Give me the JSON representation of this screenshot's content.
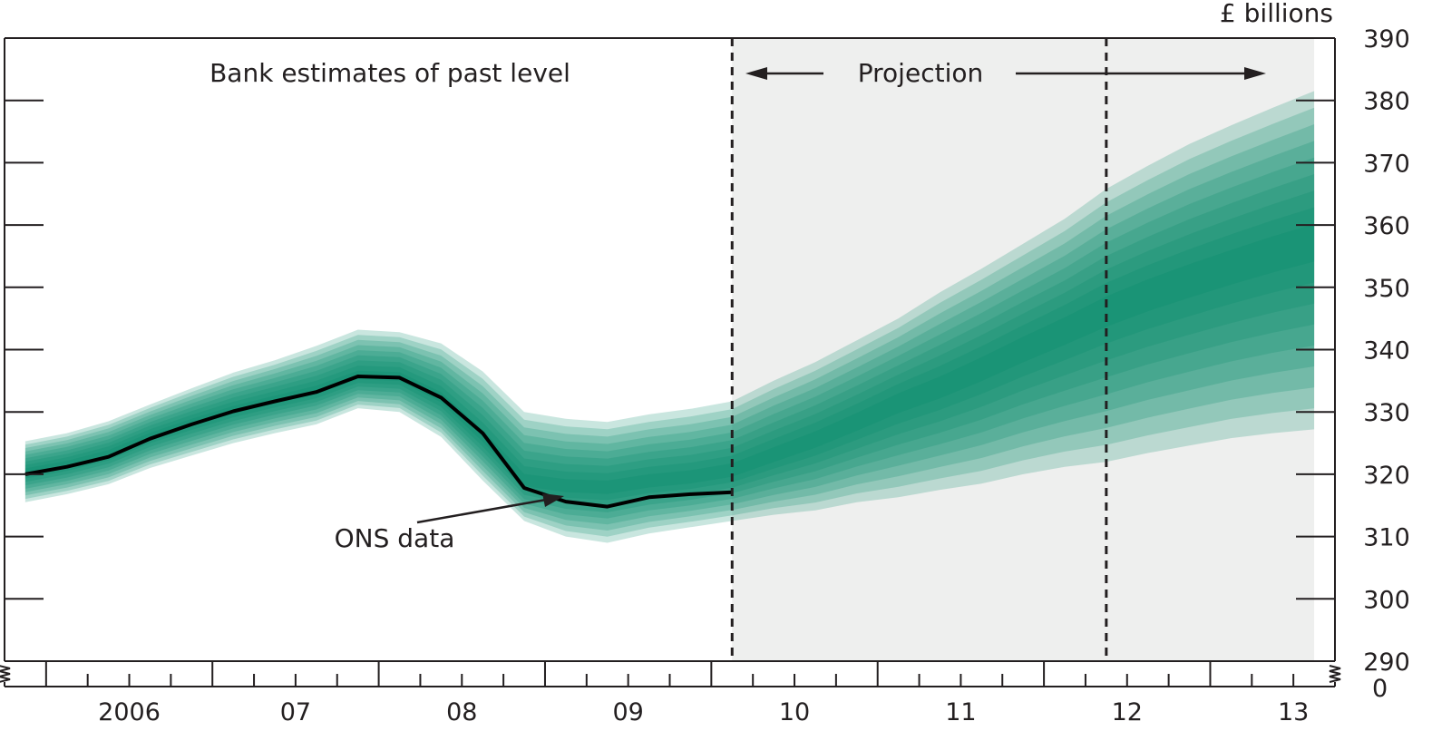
{
  "chart_data": {
    "type": "area",
    "title": "",
    "unit_label": "£ billions",
    "ylim": [
      290,
      390
    ],
    "y_ticks": [
      290,
      300,
      310,
      320,
      330,
      340,
      350,
      360,
      370,
      380,
      390
    ],
    "y_axis_break_label": "0",
    "x_range": [
      2005.75,
      2013.75
    ],
    "x_tick_labels": [
      {
        "label": "2006",
        "x": 2006.5
      },
      {
        "label": "07",
        "x": 2007.5
      },
      {
        "label": "08",
        "x": 2008.5
      },
      {
        "label": "09",
        "x": 2009.5
      },
      {
        "label": "10",
        "x": 2010.5
      },
      {
        "label": "11",
        "x": 2011.5
      },
      {
        "label": "12",
        "x": 2012.5
      },
      {
        "label": "13",
        "x": 2013.5
      }
    ],
    "projection_start": 2010.125,
    "second_marker": 2012.375,
    "projection_end": 2013.625,
    "annotations": {
      "past": "Bank estimates of past level",
      "projection": "Projection",
      "ons": "ONS data"
    },
    "colors": {
      "band": "#00876a",
      "ons_line": "#000000",
      "projection_bg": "#eeefee"
    },
    "ons_data": {
      "name": "ONS data",
      "x": [
        2005.875,
        2006.125,
        2006.375,
        2006.625,
        2006.875,
        2007.125,
        2007.375,
        2007.625,
        2007.875,
        2008.125,
        2008.375,
        2008.625,
        2008.875,
        2009.125,
        2009.375,
        2009.625,
        2009.875,
        2010.125
      ],
      "y": [
        320.0,
        321.2,
        322.8,
        325.7,
        328.0,
        330.1,
        331.7,
        333.2,
        335.7,
        335.5,
        332.3,
        326.6,
        317.8,
        315.6,
        314.8,
        316.3,
        316.8,
        317.1
      ]
    },
    "fan_center": {
      "x": [
        2005.875,
        2006.125,
        2006.375,
        2006.625,
        2006.875,
        2007.125,
        2007.375,
        2007.625,
        2007.875,
        2008.125,
        2008.375,
        2008.625,
        2008.875,
        2009.125,
        2009.375,
        2009.625,
        2009.875,
        2010.125,
        2010.375,
        2010.625,
        2010.875,
        2011.125,
        2011.375,
        2011.625,
        2011.875,
        2012.125,
        2012.375,
        2012.625,
        2012.875,
        2013.125,
        2013.375,
        2013.625
      ],
      "y": [
        320.4,
        321.6,
        323.3,
        326.1,
        328.3,
        330.3,
        331.9,
        333.4,
        335.8,
        335.6,
        332.2,
        326.0,
        318.8,
        318.0,
        317.8,
        318.8,
        319.4,
        320.5,
        323.0,
        325.5,
        328.4,
        331.5,
        334.0,
        337.0,
        340.2,
        343.2,
        346.4,
        349.0,
        351.3,
        353.5,
        355.6,
        357.5
      ]
    },
    "fan_outer_upper": [
      325.3,
      326.6,
      328.5,
      331.2,
      333.8,
      336.3,
      338.3,
      340.6,
      343.2,
      342.8,
      341.0,
      336.5,
      330.0,
      328.9,
      328.4,
      329.6,
      330.5,
      331.7,
      335.0,
      338.0,
      341.5,
      345.0,
      349.2,
      353.0,
      357.0,
      361.0,
      365.8,
      369.5,
      373.0,
      376.0,
      378.8,
      381.5
    ],
    "fan_outer_lower": [
      315.5,
      316.8,
      318.4,
      321.0,
      323.0,
      325.0,
      326.6,
      328.0,
      330.6,
      330.0,
      326.0,
      319.0,
      312.5,
      310.0,
      309.0,
      310.5,
      311.5,
      312.5,
      313.5,
      314.2,
      315.5,
      316.3,
      317.5,
      318.5,
      320.0,
      321.2,
      322.0,
      323.4,
      324.6,
      325.8,
      326.6,
      327.2
    ]
  }
}
